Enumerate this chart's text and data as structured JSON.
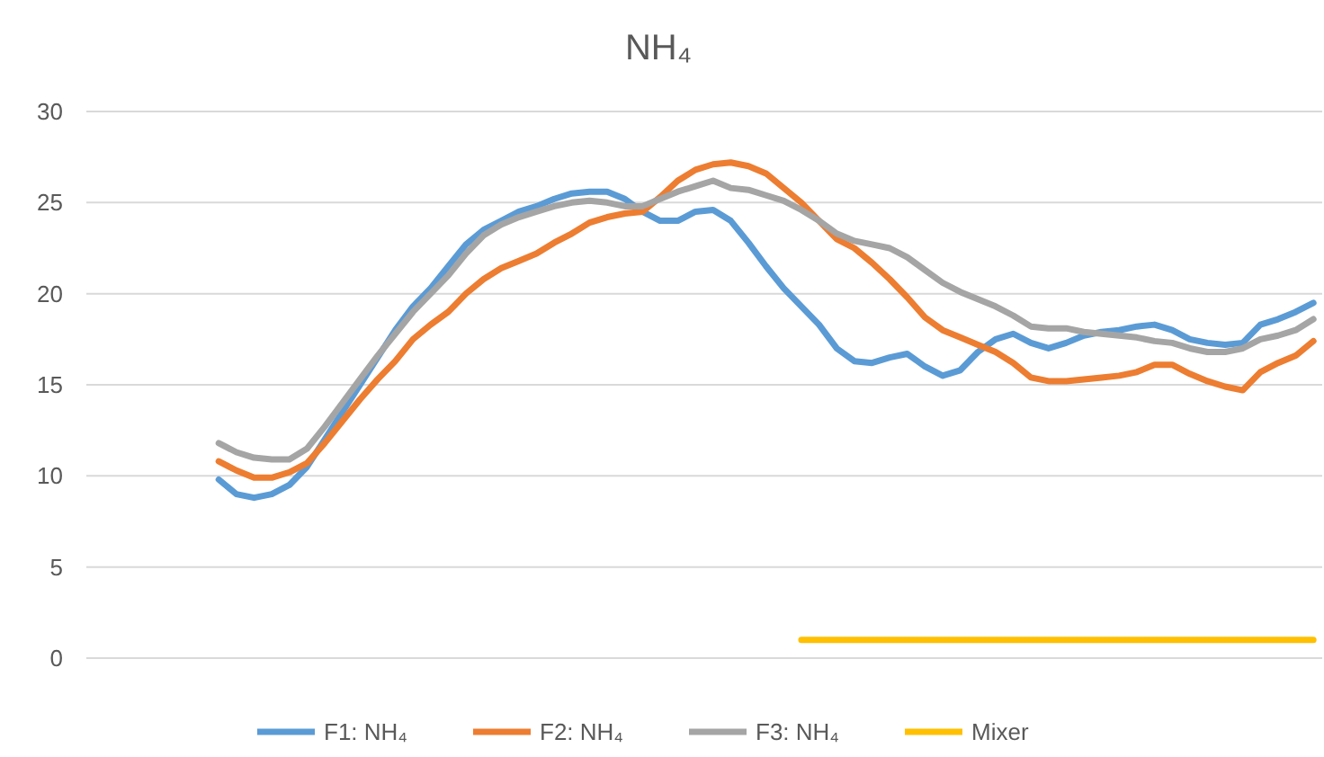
{
  "chart_data": {
    "type": "line",
    "title": "NH₄",
    "categories": [
      null,
      null,
      null,
      null,
      null,
      null,
      null,
      null,
      null,
      null,
      null,
      null,
      null,
      null,
      null,
      null,
      null,
      null,
      null,
      null,
      null,
      null,
      null,
      null,
      null,
      null,
      null,
      null,
      null,
      null,
      null,
      null,
      null,
      null,
      null,
      null,
      null,
      null,
      null,
      null,
      null,
      null,
      null,
      null,
      null,
      null,
      null,
      null,
      null,
      null,
      null,
      null,
      null,
      null,
      null,
      null,
      null,
      null,
      null,
      null,
      null,
      null,
      null,
      null,
      null,
      null,
      null,
      null,
      null,
      null
    ],
    "ylim": [
      0,
      30
    ],
    "yticks": [
      0,
      5,
      10,
      15,
      20,
      25,
      30
    ],
    "grid": "y",
    "legend": "bottom",
    "marker": "none",
    "series": [
      {
        "name": "F1: NH₄",
        "color": "#5b9bd5",
        "values": [
          null,
          null,
          null,
          null,
          null,
          null,
          null,
          9.8,
          9.0,
          8.8,
          9.0,
          9.5,
          10.5,
          12.0,
          13.5,
          15.0,
          16.5,
          18.0,
          19.3,
          20.3,
          21.5,
          22.7,
          23.5,
          24.0,
          24.5,
          24.8,
          25.2,
          25.5,
          25.6,
          25.6,
          25.2,
          24.5,
          24.0,
          24.0,
          24.5,
          24.6,
          24.0,
          22.8,
          21.5,
          20.3,
          19.3,
          18.3,
          17.0,
          16.3,
          16.2,
          16.5,
          16.7,
          16.0,
          15.5,
          15.8,
          16.8,
          17.5,
          17.8,
          17.3,
          17.0,
          17.3,
          17.7,
          17.9,
          18.0,
          18.2,
          18.3,
          18.0,
          17.5,
          17.3,
          17.2,
          17.3,
          18.3,
          18.6,
          19.0,
          19.5
        ]
      },
      {
        "name": "F2: NH₄",
        "color": "#ed7d31",
        "values": [
          null,
          null,
          null,
          null,
          null,
          null,
          null,
          10.8,
          10.3,
          9.9,
          9.9,
          10.2,
          10.7,
          11.8,
          13.0,
          14.2,
          15.3,
          16.3,
          17.5,
          18.3,
          19.0,
          20.0,
          20.8,
          21.4,
          21.8,
          22.2,
          22.8,
          23.3,
          23.9,
          24.2,
          24.4,
          24.5,
          25.3,
          26.2,
          26.8,
          27.1,
          27.2,
          27.0,
          26.6,
          25.8,
          25.0,
          24.0,
          23.0,
          22.5,
          21.7,
          20.8,
          19.8,
          18.7,
          18.0,
          17.6,
          17.2,
          16.8,
          16.2,
          15.4,
          15.2,
          15.2,
          15.3,
          15.4,
          15.5,
          15.7,
          16.1,
          16.1,
          15.6,
          15.2,
          14.9,
          14.7,
          15.7,
          16.2,
          16.6,
          17.4
        ]
      },
      {
        "name": "F3: NH₄",
        "color": "#a5a5a5",
        "values": [
          null,
          null,
          null,
          null,
          null,
          null,
          null,
          11.8,
          11.3,
          11.0,
          10.9,
          10.9,
          11.5,
          12.7,
          14.0,
          15.3,
          16.6,
          17.8,
          19.0,
          20.0,
          21.0,
          22.2,
          23.2,
          23.8,
          24.2,
          24.5,
          24.8,
          25.0,
          25.1,
          25.0,
          24.8,
          24.8,
          25.2,
          25.6,
          25.9,
          26.2,
          25.8,
          25.7,
          25.4,
          25.1,
          24.6,
          24.0,
          23.3,
          22.9,
          22.7,
          22.5,
          22.0,
          21.3,
          20.6,
          20.1,
          19.7,
          19.3,
          18.8,
          18.2,
          18.1,
          18.1,
          17.9,
          17.8,
          17.7,
          17.6,
          17.4,
          17.3,
          17.0,
          16.8,
          16.8,
          17.0,
          17.5,
          17.7,
          18.0,
          18.6
        ]
      },
      {
        "name": "Mixer",
        "color": "#ffc000",
        "values": [
          null,
          null,
          null,
          null,
          null,
          null,
          null,
          null,
          null,
          null,
          null,
          null,
          null,
          null,
          null,
          null,
          null,
          null,
          null,
          null,
          null,
          null,
          null,
          null,
          null,
          null,
          null,
          null,
          null,
          null,
          null,
          null,
          null,
          null,
          null,
          null,
          null,
          null,
          null,
          null,
          1,
          1,
          1,
          1,
          1,
          1,
          1,
          1,
          1,
          1,
          1,
          1,
          1,
          1,
          1,
          1,
          1,
          1,
          1,
          1,
          1,
          1,
          1,
          1,
          1,
          1,
          1,
          1,
          1,
          1
        ]
      }
    ]
  }
}
